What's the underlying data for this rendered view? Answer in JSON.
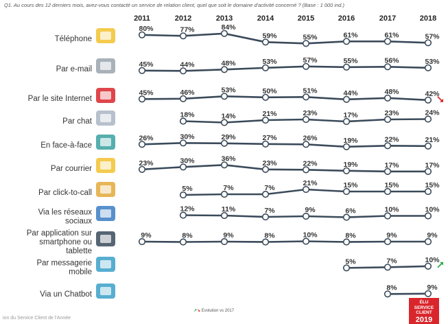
{
  "question": "Q1. Au cours des 12 derniers mois, avez-vous contacté un service de relation client, quel que soit le domaine d'activité concerné ? (Base : 1 000 ind.)",
  "footer": "ion du Service Client de l'Année",
  "legend": "Evolution vs 2017",
  "badge": {
    "line1": "ÉLU",
    "line2": "SERVICE",
    "line3": "CLIENT",
    "line4": "2019"
  },
  "colors": {
    "line": "#3a4a5a",
    "up_arrow": "#2eaa4a",
    "down_arrow": "#d9262c"
  },
  "chart_data": {
    "type": "line",
    "x": [
      2011,
      2012,
      2013,
      2014,
      2015,
      2016,
      2017,
      2018
    ],
    "unit": "%",
    "series": [
      {
        "name": "Téléphone",
        "icon": "phone-icon",
        "values": [
          80,
          77,
          84,
          59,
          55,
          61,
          61,
          57
        ]
      },
      {
        "name": "Par e-mail",
        "icon": "email-icon",
        "values": [
          45,
          44,
          48,
          53,
          57,
          55,
          56,
          53
        ]
      },
      {
        "name": "Par le site Internet",
        "icon": "website-icon",
        "values": [
          45,
          46,
          53,
          50,
          51,
          44,
          48,
          42
        ],
        "trend": "down"
      },
      {
        "name": "Par chat",
        "icon": "chat-icon",
        "values": [
          null,
          18,
          14,
          21,
          23,
          17,
          23,
          24
        ]
      },
      {
        "name": "En face-à-face",
        "icon": "face-to-face-icon",
        "values": [
          26,
          30,
          29,
          27,
          26,
          19,
          22,
          21
        ]
      },
      {
        "name": "Par courrier",
        "icon": "mail-letter-icon",
        "values": [
          23,
          30,
          36,
          23,
          22,
          19,
          17,
          17
        ]
      },
      {
        "name": "Par click-to-call",
        "icon": "click-to-call-icon",
        "values": [
          null,
          5,
          7,
          7,
          21,
          15,
          15,
          15
        ]
      },
      {
        "name": "Via les réseaux sociaux",
        "lines": [
          "Via les réseaux",
          "sociaux"
        ],
        "icon": "social-networks-icon",
        "values": [
          null,
          12,
          11,
          7,
          9,
          6,
          10,
          10
        ]
      },
      {
        "name": "Par application sur smartphone ou tablette",
        "lines": [
          "Par application sur",
          "smartphone ou",
          "tablette"
        ],
        "icon": "smartphone-app-icon",
        "values": [
          9,
          8,
          9,
          8,
          10,
          8,
          9,
          9
        ]
      },
      {
        "name": "Par messagerie mobile",
        "lines": [
          "Par messagerie",
          "mobile"
        ],
        "icon": "mobile-messaging-icon",
        "values": [
          null,
          null,
          null,
          null,
          null,
          5,
          7,
          10
        ],
        "trend": "up"
      },
      {
        "name": "Via un Chatbot",
        "icon": "chatbot-icon",
        "values": [
          null,
          null,
          null,
          null,
          null,
          null,
          8,
          9
        ]
      }
    ]
  }
}
